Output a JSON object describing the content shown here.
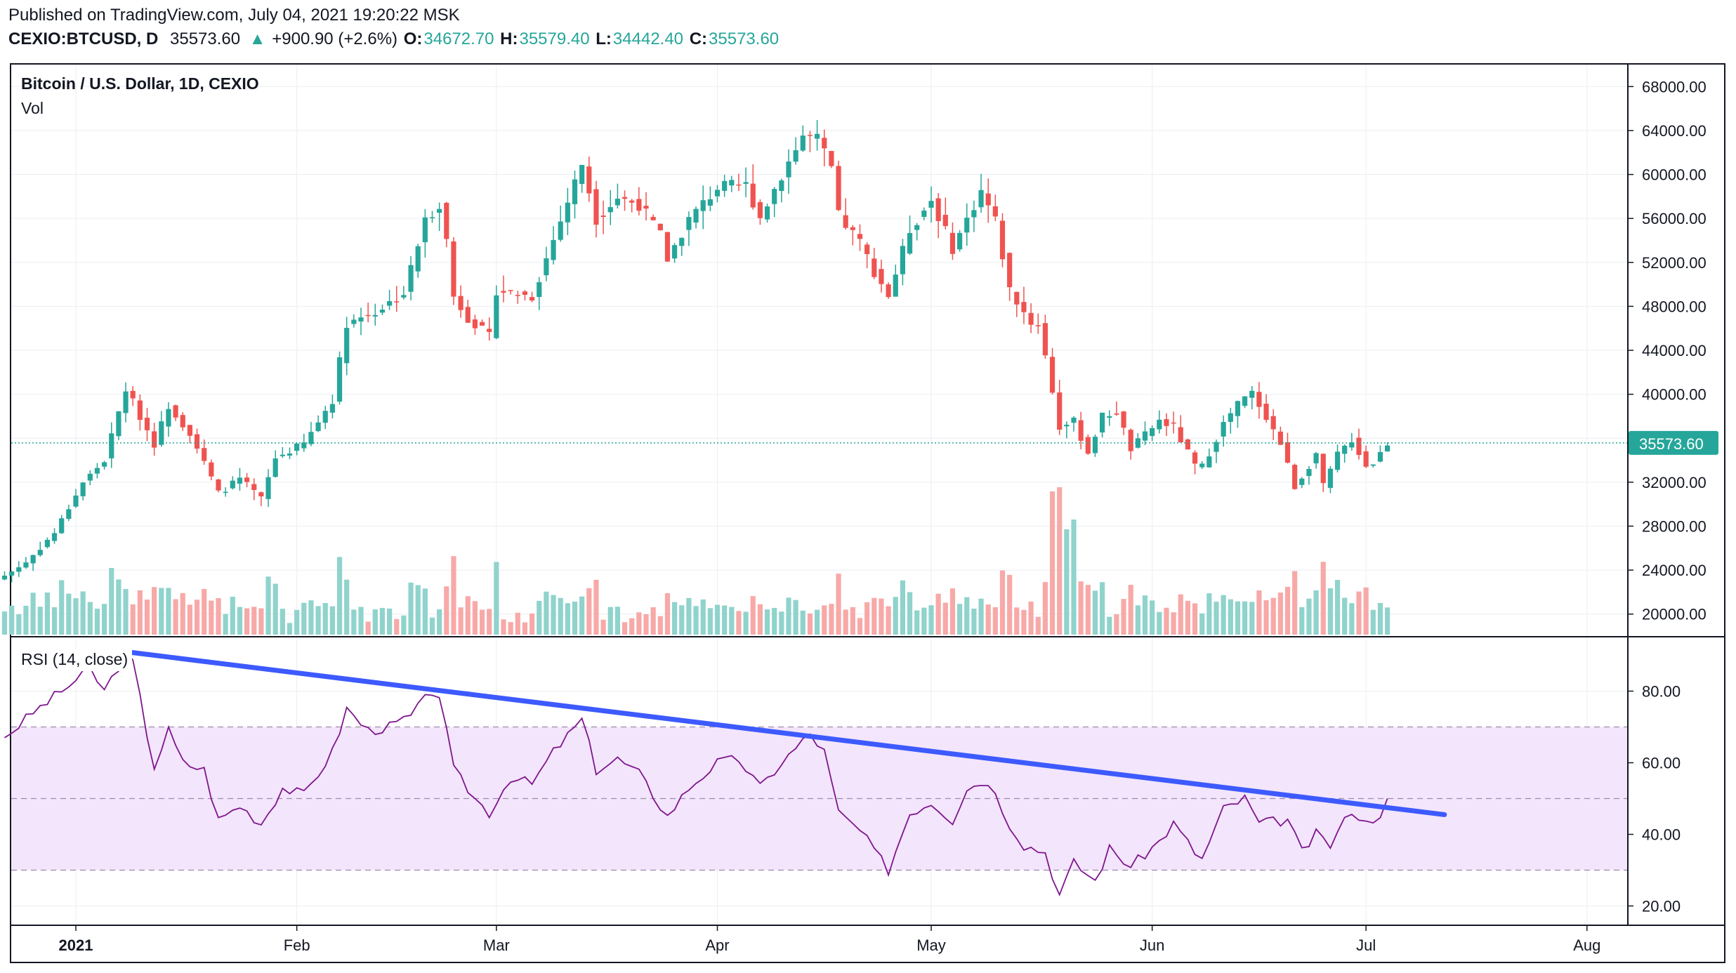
{
  "header": {
    "published": "Published on TradingView.com, July 04, 2021 19:20:22 MSK",
    "symbol": "CEXIO:BTCUSD, D",
    "last": "35573.60",
    "change_arrow": "▲",
    "change": "+900.90 (+2.6%)",
    "o_label": "O:",
    "o": "34672.70",
    "h_label": "H:",
    "h": "35579.40",
    "l_label": "L:",
    "l": "34442.40",
    "c_label": "C:",
    "c": "35573.60"
  },
  "price_pane": {
    "title": "Bitcoin / U.S. Dollar, 1D, CEXIO",
    "volume_label": "Vol",
    "price_tag": "35573.60"
  },
  "rsi_pane": {
    "title": "RSI (14, close)"
  },
  "colors": {
    "up": "#26a69a",
    "down": "#ef5350",
    "vol_up": "#8fd3cc",
    "vol_down": "#f7a9a8",
    "rsi_line": "#7e168e",
    "rsi_band": "#f3e5fb",
    "trendline": "#3d5afe",
    "grid": "#eceef2",
    "last_price_line": "#26a69a"
  },
  "chart_data": [
    {
      "type": "candlestick",
      "title": "Bitcoin / U.S. Dollar, 1D, CEXIO",
      "ylim": [
        18000,
        70000
      ],
      "y_ticks": [
        "68000.00",
        "64000.00",
        "60000.00",
        "56000.00",
        "52000.00",
        "48000.00",
        "44000.00",
        "40000.00",
        "36000.00",
        "32000.00",
        "28000.00",
        "24000.00",
        "20000.00"
      ],
      "x_ticks": [
        "2021",
        "Feb",
        "Mar",
        "Apr",
        "May",
        "Jun",
        "Jul",
        "Aug"
      ],
      "last_price": 35573.6,
      "series": [
        {
          "name": "Bitcoin / U.S. Dollar",
          "anchors": [
            {
              "date": "2020-12-22",
              "close": 23500
            },
            {
              "date": "2020-12-25",
              "close": 24700
            },
            {
              "date": "2020-12-29",
              "close": 27400
            },
            {
              "date": "2021-01-02",
              "close": 32000
            },
            {
              "date": "2021-01-05",
              "close": 34000
            },
            {
              "date": "2021-01-08",
              "close": 40500
            },
            {
              "date": "2021-01-10",
              "close": 38000
            },
            {
              "date": "2021-01-12",
              "close": 35500
            },
            {
              "date": "2021-01-14",
              "close": 39000
            },
            {
              "date": "2021-01-17",
              "close": 36500
            },
            {
              "date": "2021-01-21",
              "close": 31000
            },
            {
              "date": "2021-01-24",
              "close": 32300
            },
            {
              "date": "2021-01-27",
              "close": 30500
            },
            {
              "date": "2021-01-29",
              "close": 34200
            },
            {
              "date": "2021-02-02",
              "close": 35500
            },
            {
              "date": "2021-02-06",
              "close": 39500
            },
            {
              "date": "2021-02-08",
              "close": 46500
            },
            {
              "date": "2021-02-12",
              "close": 47500
            },
            {
              "date": "2021-02-16",
              "close": 49200
            },
            {
              "date": "2021-02-19",
              "close": 55800
            },
            {
              "date": "2021-02-21",
              "close": 57400
            },
            {
              "date": "2021-02-22",
              "close": 54000
            },
            {
              "date": "2021-02-23",
              "close": 48900
            },
            {
              "date": "2021-02-25",
              "close": 47000
            },
            {
              "date": "2021-02-28",
              "close": 45200
            },
            {
              "date": "2021-03-01",
              "close": 49500
            },
            {
              "date": "2021-03-06",
              "close": 48900
            },
            {
              "date": "2021-03-10",
              "close": 55800
            },
            {
              "date": "2021-03-13",
              "close": 61000
            },
            {
              "date": "2021-03-15",
              "close": 56000
            },
            {
              "date": "2021-03-18",
              "close": 57900
            },
            {
              "date": "2021-03-21",
              "close": 57300
            },
            {
              "date": "2021-03-24",
              "close": 54500
            },
            {
              "date": "2021-03-25",
              "close": 52300
            },
            {
              "date": "2021-03-28",
              "close": 55900
            },
            {
              "date": "2021-04-01",
              "close": 58800
            },
            {
              "date": "2021-04-05",
              "close": 59000
            },
            {
              "date": "2021-04-07",
              "close": 56100
            },
            {
              "date": "2021-04-10",
              "close": 60000
            },
            {
              "date": "2021-04-13",
              "close": 63500
            },
            {
              "date": "2021-04-15",
              "close": 63200
            },
            {
              "date": "2021-04-17",
              "close": 60500
            },
            {
              "date": "2021-04-18",
              "close": 56200
            },
            {
              "date": "2021-04-21",
              "close": 53800
            },
            {
              "date": "2021-04-23",
              "close": 51200
            },
            {
              "date": "2021-04-25",
              "close": 49000
            },
            {
              "date": "2021-04-28",
              "close": 55000
            },
            {
              "date": "2021-05-01",
              "close": 57700
            },
            {
              "date": "2021-05-04",
              "close": 53300
            },
            {
              "date": "2021-05-08",
              "close": 58500
            },
            {
              "date": "2021-05-10",
              "close": 55800
            },
            {
              "date": "2021-05-12",
              "close": 49500
            },
            {
              "date": "2021-05-15",
              "close": 46500
            },
            {
              "date": "2021-05-16",
              "close": 46400
            },
            {
              "date": "2021-05-17",
              "close": 43500
            },
            {
              "date": "2021-05-19",
              "close": 37000
            },
            {
              "date": "2021-05-21",
              "close": 37500
            },
            {
              "date": "2021-05-23",
              "close": 34700
            },
            {
              "date": "2021-05-25",
              "close": 38000
            },
            {
              "date": "2021-05-27",
              "close": 38400
            },
            {
              "date": "2021-05-29",
              "close": 35000
            },
            {
              "date": "2021-06-02",
              "close": 37600
            },
            {
              "date": "2021-06-04",
              "close": 37000
            },
            {
              "date": "2021-06-07",
              "close": 33500
            },
            {
              "date": "2021-06-08",
              "close": 33400
            },
            {
              "date": "2021-06-11",
              "close": 37300
            },
            {
              "date": "2021-06-13",
              "close": 39100
            },
            {
              "date": "2021-06-15",
              "close": 40100
            },
            {
              "date": "2021-06-17",
              "close": 38000
            },
            {
              "date": "2021-06-19",
              "close": 35500
            },
            {
              "date": "2021-06-21",
              "close": 31600
            },
            {
              "date": "2021-06-22",
              "close": 32500
            },
            {
              "date": "2021-06-24",
              "close": 34600
            },
            {
              "date": "2021-06-25",
              "close": 31600
            },
            {
              "date": "2021-06-27",
              "close": 34500
            },
            {
              "date": "2021-06-29",
              "close": 35900
            },
            {
              "date": "2021-07-01",
              "close": 33500
            },
            {
              "date": "2021-07-02",
              "close": 33800
            },
            {
              "date": "2021-07-03",
              "close": 34672.7
            },
            {
              "date": "2021-07-04",
              "close": 35573.6
            }
          ]
        }
      ]
    },
    {
      "type": "bar",
      "title": "Vol",
      "note": "volume histogram at bottom of price pane, colored by candle direction"
    },
    {
      "type": "line",
      "title": "RSI (14, close)",
      "ylim": [
        15,
        95
      ],
      "y_ticks": [
        "80.00",
        "60.00",
        "40.00",
        "20.00"
      ],
      "bands": [
        30,
        50,
        70
      ],
      "series": [
        {
          "name": "RSI (14, close)",
          "anchors": [
            {
              "date": "2020-12-22",
              "value": 67
            },
            {
              "date": "2020-12-26",
              "value": 74
            },
            {
              "date": "2020-12-30",
              "value": 80
            },
            {
              "date": "2021-01-03",
              "value": 86
            },
            {
              "date": "2021-01-05",
              "value": 80
            },
            {
              "date": "2021-01-07",
              "value": 87
            },
            {
              "date": "2021-01-08",
              "value": 90
            },
            {
              "date": "2021-01-09",
              "value": 88
            },
            {
              "date": "2021-01-11",
              "value": 68
            },
            {
              "date": "2021-01-12",
              "value": 59
            },
            {
              "date": "2021-01-14",
              "value": 69
            },
            {
              "date": "2021-01-16",
              "value": 60
            },
            {
              "date": "2021-01-19",
              "value": 58
            },
            {
              "date": "2021-01-21",
              "value": 44
            },
            {
              "date": "2021-01-24",
              "value": 48
            },
            {
              "date": "2021-01-27",
              "value": 43
            },
            {
              "date": "2021-01-30",
              "value": 53
            },
            {
              "date": "2021-02-02",
              "value": 51
            },
            {
              "date": "2021-02-06",
              "value": 63
            },
            {
              "date": "2021-02-08",
              "value": 75
            },
            {
              "date": "2021-02-11",
              "value": 69
            },
            {
              "date": "2021-02-14",
              "value": 70
            },
            {
              "date": "2021-02-17",
              "value": 73
            },
            {
              "date": "2021-02-20",
              "value": 80
            },
            {
              "date": "2021-02-21",
              "value": 79
            },
            {
              "date": "2021-02-23",
              "value": 58
            },
            {
              "date": "2021-02-26",
              "value": 50
            },
            {
              "date": "2021-02-28",
              "value": 46
            },
            {
              "date": "2021-03-03",
              "value": 56
            },
            {
              "date": "2021-03-06",
              "value": 54
            },
            {
              "date": "2021-03-09",
              "value": 63
            },
            {
              "date": "2021-03-13",
              "value": 72
            },
            {
              "date": "2021-03-15",
              "value": 58
            },
            {
              "date": "2021-03-18",
              "value": 61
            },
            {
              "date": "2021-03-21",
              "value": 57
            },
            {
              "date": "2021-03-25",
              "value": 45
            },
            {
              "date": "2021-03-28",
              "value": 53
            },
            {
              "date": "2021-04-01",
              "value": 60
            },
            {
              "date": "2021-04-04",
              "value": 61
            },
            {
              "date": "2021-04-07",
              "value": 53
            },
            {
              "date": "2021-04-10",
              "value": 60
            },
            {
              "date": "2021-04-14",
              "value": 68
            },
            {
              "date": "2021-04-16",
              "value": 63
            },
            {
              "date": "2021-04-18",
              "value": 46
            },
            {
              "date": "2021-04-21",
              "value": 41
            },
            {
              "date": "2021-04-25",
              "value": 30
            },
            {
              "date": "2021-04-28",
              "value": 46
            },
            {
              "date": "2021-05-01",
              "value": 49
            },
            {
              "date": "2021-05-04",
              "value": 44
            },
            {
              "date": "2021-05-06",
              "value": 53
            },
            {
              "date": "2021-05-09",
              "value": 55
            },
            {
              "date": "2021-05-12",
              "value": 43
            },
            {
              "date": "2021-05-14",
              "value": 37
            },
            {
              "date": "2021-05-17",
              "value": 35
            },
            {
              "date": "2021-05-19",
              "value": 23
            },
            {
              "date": "2021-05-21",
              "value": 32
            },
            {
              "date": "2021-05-24",
              "value": 27
            },
            {
              "date": "2021-05-26",
              "value": 36
            },
            {
              "date": "2021-05-29",
              "value": 31
            },
            {
              "date": "2021-06-02",
              "value": 38
            },
            {
              "date": "2021-06-04",
              "value": 43
            },
            {
              "date": "2021-06-07",
              "value": 35
            },
            {
              "date": "2021-06-08",
              "value": 33
            },
            {
              "date": "2021-06-11",
              "value": 47
            },
            {
              "date": "2021-06-14",
              "value": 50
            },
            {
              "date": "2021-06-16",
              "value": 43
            },
            {
              "date": "2021-06-20",
              "value": 44
            },
            {
              "date": "2021-06-22",
              "value": 35
            },
            {
              "date": "2021-06-24",
              "value": 40
            },
            {
              "date": "2021-06-26",
              "value": 37
            },
            {
              "date": "2021-06-29",
              "value": 47
            },
            {
              "date": "2021-07-01",
              "value": 43
            },
            {
              "date": "2021-07-03",
              "value": 46
            },
            {
              "date": "2021-07-04",
              "value": 50
            }
          ]
        }
      ],
      "trendline": {
        "from": {
          "date": "2021-01-08",
          "value": 91
        },
        "to": {
          "date": "2021-07-12",
          "value": 45.5
        }
      }
    }
  ]
}
